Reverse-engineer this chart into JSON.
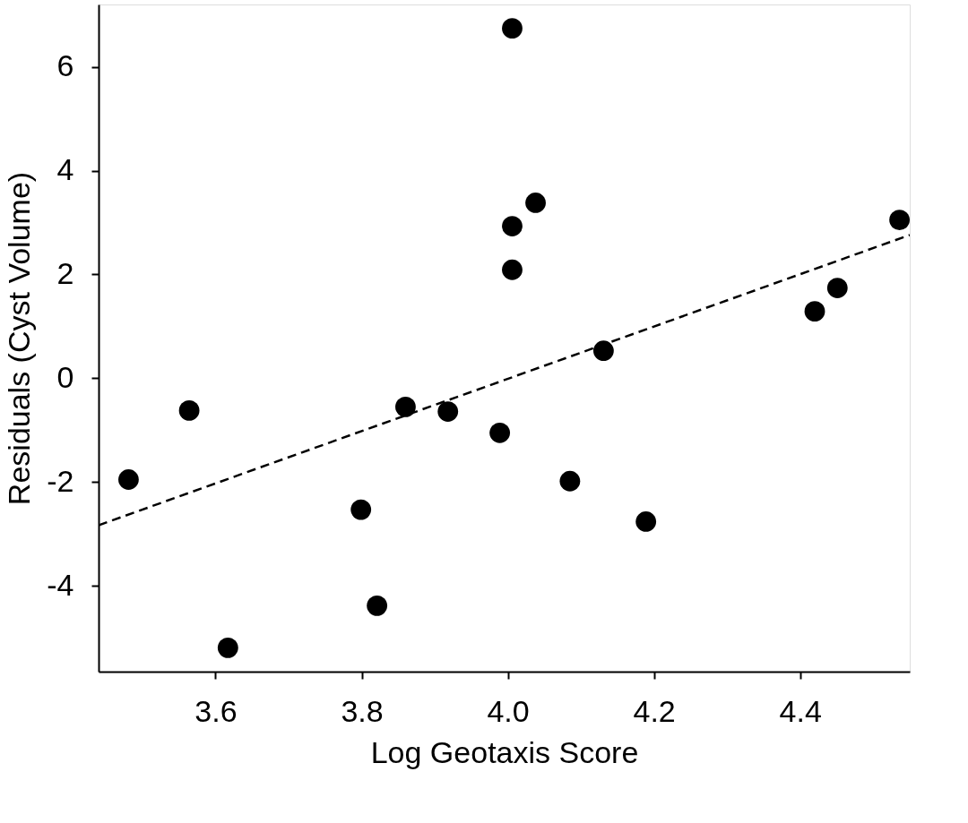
{
  "chart_data": {
    "type": "scatter",
    "xlabel": "Log Geotaxis Score",
    "ylabel": "Residuals (Cyst Volume)",
    "xlim": [
      3.44,
      4.55
    ],
    "ylim": [
      -5.65,
      7.2
    ],
    "xticks": [
      3.6,
      3.8,
      {
        "value": 4.0,
        "label": "4.0"
      },
      4.2,
      4.4
    ],
    "yticks": [
      -4,
      -2,
      0,
      2,
      4,
      6
    ],
    "series": [
      {
        "color": "#000000",
        "marker": "circle",
        "x": [
          3.481,
          3.564,
          3.617,
          3.799,
          3.821,
          3.86,
          3.918,
          3.989,
          4.006,
          4.006,
          4.006,
          4.038,
          4.085,
          4.131,
          4.189,
          4.42,
          4.451,
          4.536
        ],
        "values": [
          -1.95,
          -0.62,
          -5.19,
          -2.53,
          -4.38,
          -0.55,
          -0.64,
          -1.05,
          6.74,
          2.93,
          2.09,
          3.38,
          -1.98,
          0.53,
          -2.76,
          1.29,
          1.74,
          3.05
        ]
      },
      {
        "type": "line",
        "color": "#000000",
        "marker": "none",
        "line_style": "dashed",
        "x": [
          3.44,
          4.55
        ],
        "values": [
          -2.83,
          2.76
        ]
      }
    ]
  }
}
